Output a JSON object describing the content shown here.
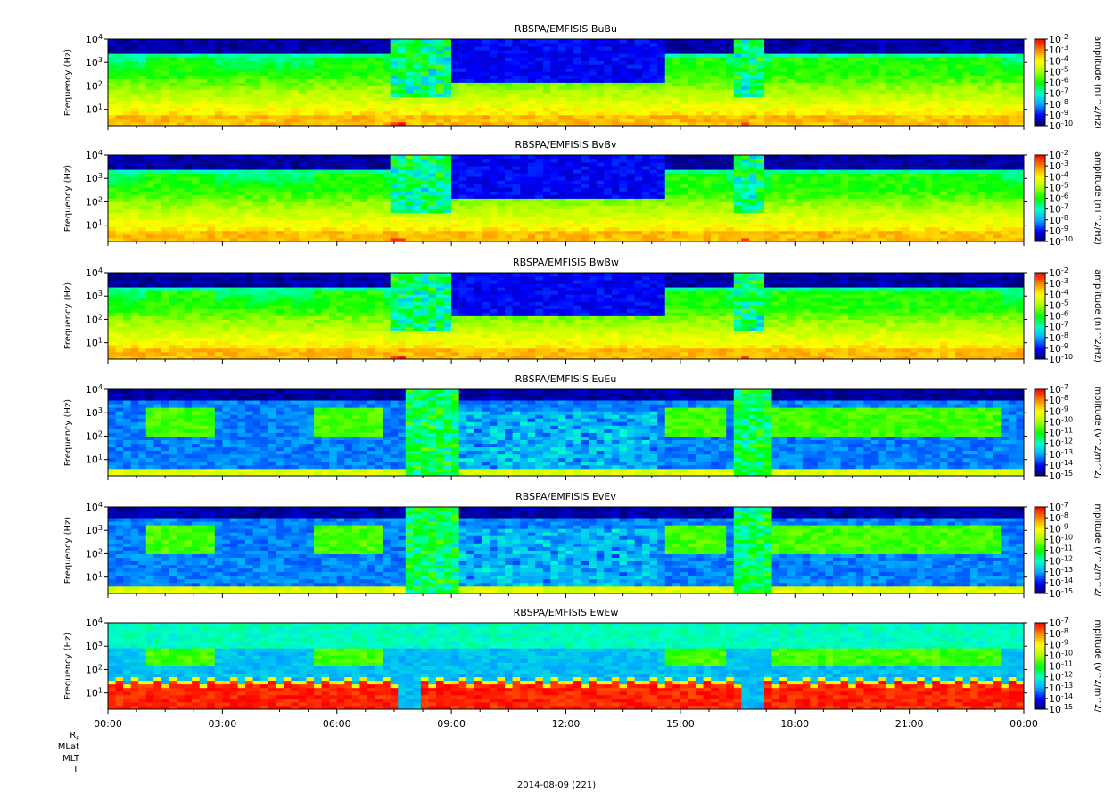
{
  "chart_data": [
    {
      "type": "heatmap",
      "title": "RBSPA/EMFISIS  BuBu",
      "ylabel": "Frequency (Hz)",
      "yscale": "log",
      "ylim": [
        2,
        10000
      ],
      "yticks": [
        "10^1",
        "10^2",
        "10^3",
        "10^4"
      ],
      "xticks": [
        "00:00",
        "03:00",
        "06:00",
        "09:00",
        "12:00",
        "15:00",
        "18:00",
        "21:00",
        "00:00"
      ],
      "xlim_hours": [
        0,
        24
      ],
      "colorbar": {
        "label": "amplitude (nT^2/Hz)",
        "scale": "log",
        "range": [
          -10,
          -2
        ],
        "tick_labels": [
          "10^-2",
          "10^-3",
          "10^-4",
          "10^-5",
          "10^-6",
          "10^-7",
          "10^-8",
          "10^-9",
          "10^-10"
        ]
      },
      "colormap": [
        "#000066",
        "#0000ff",
        "#00aaff",
        "#00ffcc",
        "#00ff00",
        "#aaff00",
        "#ffff00",
        "#ff8800",
        "#ff0000"
      ],
      "kind": "B"
    },
    {
      "type": "heatmap",
      "title": "RBSPA/EMFISIS  BvBv",
      "ylabel": "Frequency (Hz)",
      "yscale": "log",
      "ylim": [
        2,
        10000
      ],
      "yticks": [
        "10^1",
        "10^2",
        "10^3",
        "10^4"
      ],
      "xticks": [
        "00:00",
        "03:00",
        "06:00",
        "09:00",
        "12:00",
        "15:00",
        "18:00",
        "21:00",
        "00:00"
      ],
      "xlim_hours": [
        0,
        24
      ],
      "colorbar": {
        "label": "amplitude (nT^2/Hz)",
        "scale": "log",
        "range": [
          -10,
          -2
        ],
        "tick_labels": [
          "10^-2",
          "10^-3",
          "10^-4",
          "10^-5",
          "10^-6",
          "10^-7",
          "10^-8",
          "10^-9",
          "10^-10"
        ]
      },
      "colormap": [
        "#000066",
        "#0000ff",
        "#00aaff",
        "#00ffcc",
        "#00ff00",
        "#aaff00",
        "#ffff00",
        "#ff8800",
        "#ff0000"
      ],
      "kind": "B"
    },
    {
      "type": "heatmap",
      "title": "RBSPA/EMFISIS  BwBw",
      "ylabel": "Frequency (Hz)",
      "yscale": "log",
      "ylim": [
        2,
        10000
      ],
      "yticks": [
        "10^1",
        "10^2",
        "10^3",
        "10^4"
      ],
      "xticks": [
        "00:00",
        "03:00",
        "06:00",
        "09:00",
        "12:00",
        "15:00",
        "18:00",
        "21:00",
        "00:00"
      ],
      "xlim_hours": [
        0,
        24
      ],
      "colorbar": {
        "label": "amplitude (nT^2/Hz)",
        "scale": "log",
        "range": [
          -10,
          -2
        ],
        "tick_labels": [
          "10^-2",
          "10^-3",
          "10^-4",
          "10^-5",
          "10^-6",
          "10^-7",
          "10^-8",
          "10^-9",
          "10^-10"
        ]
      },
      "colormap": [
        "#000066",
        "#0000ff",
        "#00aaff",
        "#00ffcc",
        "#00ff00",
        "#aaff00",
        "#ffff00",
        "#ff8800",
        "#ff0000"
      ],
      "kind": "B"
    },
    {
      "type": "heatmap",
      "title": "RBSPA/EMFISIS  EuEu",
      "ylabel": "Frequency (Hz)",
      "yscale": "log",
      "ylim": [
        2,
        10000
      ],
      "yticks": [
        "10^1",
        "10^2",
        "10^3",
        "10^4"
      ],
      "xticks": [
        "00:00",
        "03:00",
        "06:00",
        "09:00",
        "12:00",
        "15:00",
        "18:00",
        "21:00",
        "00:00"
      ],
      "xlim_hours": [
        0,
        24
      ],
      "colorbar": {
        "label": "mplitude (V^2/m^2/",
        "scale": "log",
        "range": [
          -15,
          -7
        ],
        "tick_labels": [
          "10^-7",
          "10^-8",
          "10^-9",
          "10^-10",
          "10^-11",
          "10^-12",
          "10^-13",
          "10^-14",
          "10^-15"
        ]
      },
      "colormap": [
        "#000066",
        "#0000ff",
        "#00aaff",
        "#00ffcc",
        "#00ff00",
        "#aaff00",
        "#ffff00",
        "#ff8800",
        "#ff0000"
      ],
      "kind": "E"
    },
    {
      "type": "heatmap",
      "title": "RBSPA/EMFISIS  EvEv",
      "ylabel": "Frequency (Hz)",
      "yscale": "log",
      "ylim": [
        2,
        10000
      ],
      "yticks": [
        "10^1",
        "10^2",
        "10^3",
        "10^4"
      ],
      "xticks": [
        "00:00",
        "03:00",
        "06:00",
        "09:00",
        "12:00",
        "15:00",
        "18:00",
        "21:00",
        "00:00"
      ],
      "xlim_hours": [
        0,
        24
      ],
      "colorbar": {
        "label": "mplitude (V^2/m^2/",
        "scale": "log",
        "range": [
          -15,
          -7
        ],
        "tick_labels": [
          "10^-7",
          "10^-8",
          "10^-9",
          "10^-10",
          "10^-11",
          "10^-12",
          "10^-13",
          "10^-14",
          "10^-15"
        ]
      },
      "colormap": [
        "#000066",
        "#0000ff",
        "#00aaff",
        "#00ffcc",
        "#00ff00",
        "#aaff00",
        "#ffff00",
        "#ff8800",
        "#ff0000"
      ],
      "kind": "E"
    },
    {
      "type": "heatmap",
      "title": "RBSPA/EMFISIS  EwEw",
      "ylabel": "Frequency (Hz)",
      "yscale": "log",
      "ylim": [
        2,
        10000
      ],
      "yticks": [
        "10^1",
        "10^2",
        "10^3",
        "10^4"
      ],
      "xticks": [
        "00:00",
        "03:00",
        "06:00",
        "09:00",
        "12:00",
        "15:00",
        "18:00",
        "21:00",
        "00:00"
      ],
      "xlim_hours": [
        0,
        24
      ],
      "colorbar": {
        "label": "mplitude (V^2/m^2/",
        "scale": "log",
        "range": [
          -15,
          -7
        ],
        "tick_labels": [
          "10^-7",
          "10^-8",
          "10^-9",
          "10^-10",
          "10^-11",
          "10^-12",
          "10^-13",
          "10^-14",
          "10^-15"
        ]
      },
      "colormap": [
        "#000066",
        "#0000ff",
        "#00aaff",
        "#00ffcc",
        "#00ff00",
        "#aaff00",
        "#ffff00",
        "#ff8800",
        "#ff0000"
      ],
      "kind": "Ew"
    }
  ],
  "footer": {
    "row_labels": [
      "R_E",
      "MLat",
      "MLT",
      "L"
    ],
    "date": "2014-08-09 (221)"
  }
}
